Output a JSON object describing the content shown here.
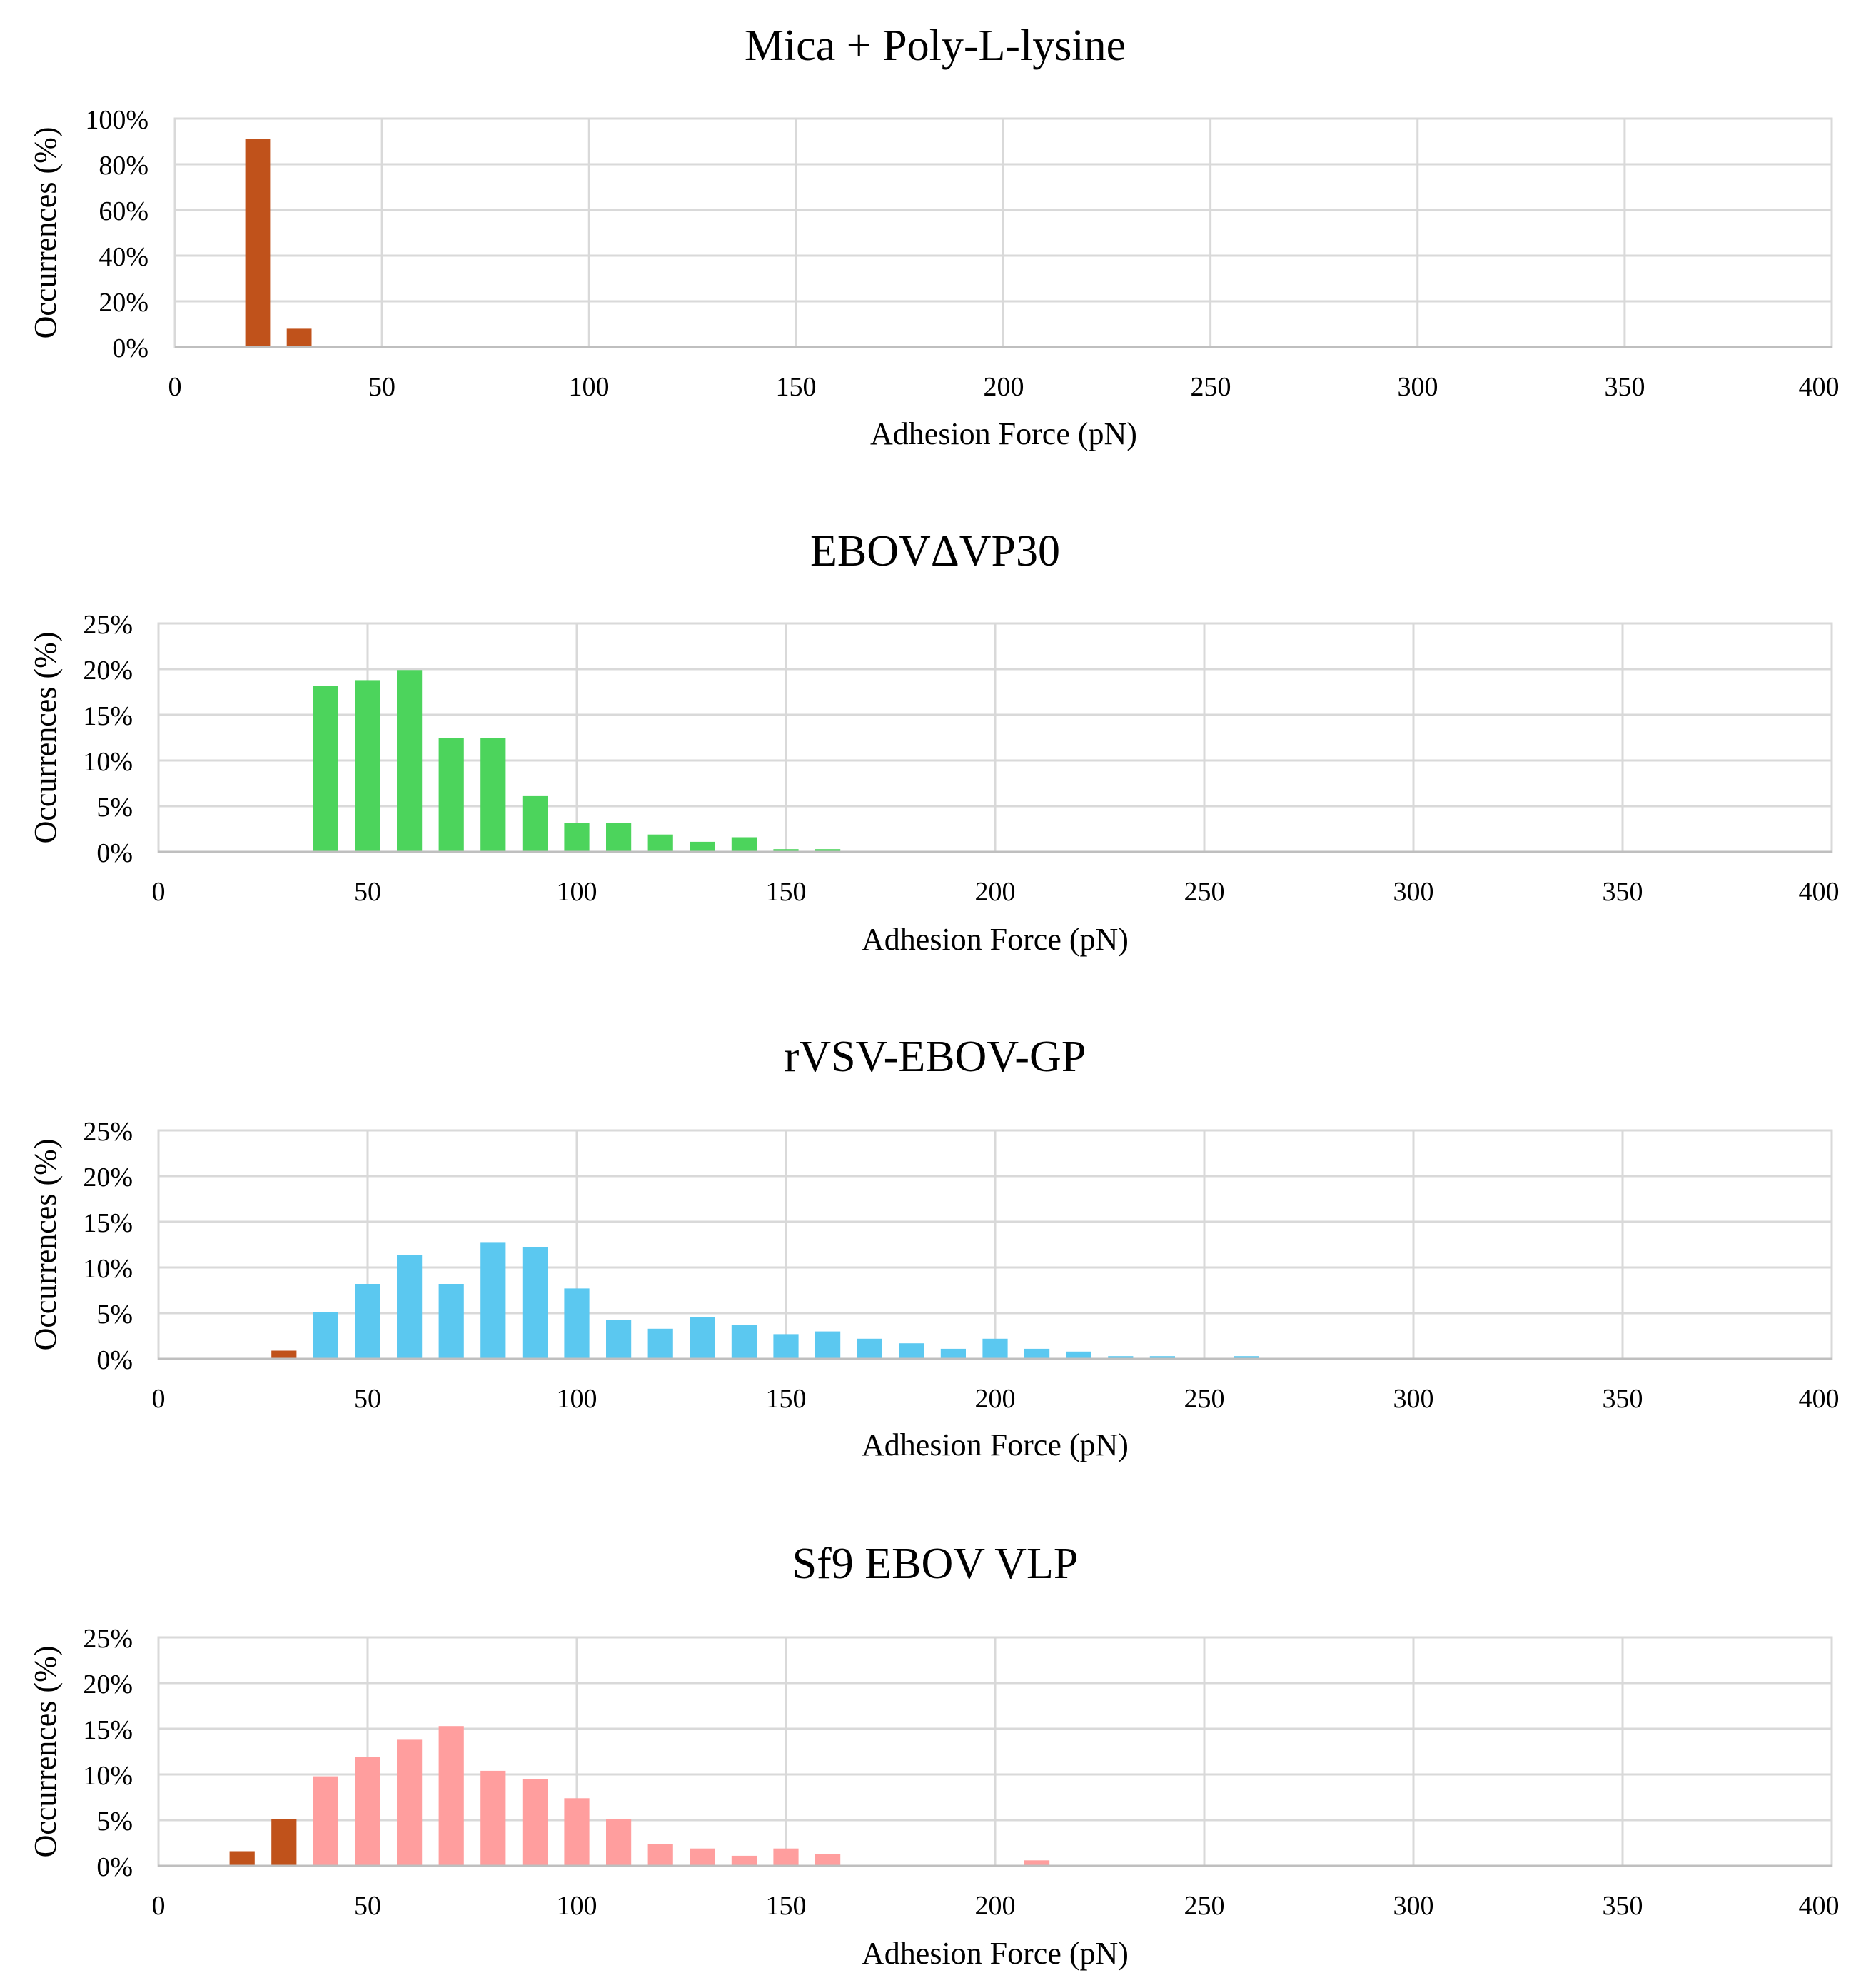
{
  "figure": {
    "panels": [
      {
        "title": "Mica + Poly-L-lysine",
        "xlabel": "Adhesion Force (pN)",
        "ylabel": "Occurrences (%)",
        "x_ticks": [
          "0",
          "50",
          "100",
          "150",
          "200",
          "250",
          "300",
          "350",
          "400"
        ],
        "y_ticks": [
          "0%",
          "20%",
          "40%",
          "60%",
          "80%",
          "100%"
        ]
      },
      {
        "title": "EBOVΔVP30",
        "xlabel": "Adhesion Force (pN)",
        "ylabel": "Occurrences (%)",
        "x_ticks": [
          "0",
          "50",
          "100",
          "150",
          "200",
          "250",
          "300",
          "350",
          "400"
        ],
        "y_ticks": [
          "0%",
          "5%",
          "10%",
          "15%",
          "20%",
          "25%"
        ]
      },
      {
        "title": "rVSV-EBOV-GP",
        "xlabel": "Adhesion Force (pN)",
        "ylabel": "Occurrences (%)",
        "x_ticks": [
          "0",
          "50",
          "100",
          "150",
          "200",
          "250",
          "300",
          "350",
          "400"
        ],
        "y_ticks": [
          "0%",
          "5%",
          "10%",
          "15%",
          "20%",
          "25%"
        ]
      },
      {
        "title": "Sf9 EBOV VLP",
        "xlabel": "Adhesion Force (pN)",
        "ylabel": "Occurrences (%)",
        "x_ticks": [
          "0",
          "50",
          "100",
          "150",
          "200",
          "250",
          "300",
          "350",
          "400"
        ],
        "y_ticks": [
          "0%",
          "5%",
          "10%",
          "15%",
          "20%",
          "25%"
        ]
      }
    ]
  },
  "chart_data": [
    {
      "type": "bar",
      "title": "Mica + Poly-L-lysine",
      "xlabel": "Adhesion Force (pN)",
      "ylabel": "Occurrences (%)",
      "xlim": [
        0,
        400
      ],
      "ylim": [
        0,
        100
      ],
      "grid": true,
      "bin_width": 10,
      "bars": [
        {
          "x": 20,
          "value": 91,
          "color": "#c0521b"
        },
        {
          "x": 30,
          "value": 8,
          "color": "#c0521b"
        }
      ]
    },
    {
      "type": "bar",
      "title": "EBOVΔVP30",
      "xlabel": "Adhesion Force (pN)",
      "ylabel": "Occurrences (%)",
      "xlim": [
        0,
        400
      ],
      "ylim": [
        0,
        25
      ],
      "grid": true,
      "bin_width": 10,
      "bars": [
        {
          "x": 40,
          "value": 18.2,
          "color": "#4cd45c"
        },
        {
          "x": 50,
          "value": 18.8,
          "color": "#4cd45c"
        },
        {
          "x": 60,
          "value": 19.9,
          "color": "#4cd45c"
        },
        {
          "x": 70,
          "value": 12.5,
          "color": "#4cd45c"
        },
        {
          "x": 80,
          "value": 12.5,
          "color": "#4cd45c"
        },
        {
          "x": 90,
          "value": 6.1,
          "color": "#4cd45c"
        },
        {
          "x": 100,
          "value": 3.2,
          "color": "#4cd45c"
        },
        {
          "x": 110,
          "value": 3.2,
          "color": "#4cd45c"
        },
        {
          "x": 120,
          "value": 1.9,
          "color": "#4cd45c"
        },
        {
          "x": 130,
          "value": 1.1,
          "color": "#4cd45c"
        },
        {
          "x": 140,
          "value": 1.6,
          "color": "#4cd45c"
        },
        {
          "x": 150,
          "value": 0.3,
          "color": "#4cd45c"
        },
        {
          "x": 160,
          "value": 0.3,
          "color": "#4cd45c"
        }
      ]
    },
    {
      "type": "bar",
      "title": "rVSV-EBOV-GP",
      "xlabel": "Adhesion Force (pN)",
      "ylabel": "Occurrences (%)",
      "xlim": [
        0,
        400
      ],
      "ylim": [
        0,
        25
      ],
      "grid": true,
      "bin_width": 10,
      "bars": [
        {
          "x": 30,
          "value": 0.9,
          "color": "#c0521b"
        },
        {
          "x": 40,
          "value": 5.1,
          "color": "#5bc8f0"
        },
        {
          "x": 50,
          "value": 8.2,
          "color": "#5bc8f0"
        },
        {
          "x": 60,
          "value": 11.4,
          "color": "#5bc8f0"
        },
        {
          "x": 70,
          "value": 8.2,
          "color": "#5bc8f0"
        },
        {
          "x": 80,
          "value": 12.7,
          "color": "#5bc8f0"
        },
        {
          "x": 90,
          "value": 12.2,
          "color": "#5bc8f0"
        },
        {
          "x": 100,
          "value": 7.7,
          "color": "#5bc8f0"
        },
        {
          "x": 110,
          "value": 4.3,
          "color": "#5bc8f0"
        },
        {
          "x": 120,
          "value": 3.3,
          "color": "#5bc8f0"
        },
        {
          "x": 130,
          "value": 4.6,
          "color": "#5bc8f0"
        },
        {
          "x": 140,
          "value": 3.7,
          "color": "#5bc8f0"
        },
        {
          "x": 150,
          "value": 2.7,
          "color": "#5bc8f0"
        },
        {
          "x": 160,
          "value": 3.0,
          "color": "#5bc8f0"
        },
        {
          "x": 170,
          "value": 2.2,
          "color": "#5bc8f0"
        },
        {
          "x": 180,
          "value": 1.7,
          "color": "#5bc8f0"
        },
        {
          "x": 190,
          "value": 1.1,
          "color": "#5bc8f0"
        },
        {
          "x": 200,
          "value": 2.2,
          "color": "#5bc8f0"
        },
        {
          "x": 210,
          "value": 1.1,
          "color": "#5bc8f0"
        },
        {
          "x": 220,
          "value": 0.8,
          "color": "#5bc8f0"
        },
        {
          "x": 230,
          "value": 0.3,
          "color": "#5bc8f0"
        },
        {
          "x": 240,
          "value": 0.3,
          "color": "#5bc8f0"
        },
        {
          "x": 260,
          "value": 0.3,
          "color": "#5bc8f0"
        }
      ]
    },
    {
      "type": "bar",
      "title": "Sf9 EBOV VLP",
      "xlabel": "Adhesion Force (pN)",
      "ylabel": "Occurrences (%)",
      "xlim": [
        0,
        400
      ],
      "ylim": [
        0,
        25
      ],
      "grid": true,
      "bin_width": 10,
      "bars": [
        {
          "x": 20,
          "value": 1.6,
          "color": "#c0521b"
        },
        {
          "x": 30,
          "value": 5.1,
          "color": "#c0521b"
        },
        {
          "x": 40,
          "value": 9.8,
          "color": "#ff9e9e"
        },
        {
          "x": 50,
          "value": 11.9,
          "color": "#ff9e9e"
        },
        {
          "x": 60,
          "value": 13.8,
          "color": "#ff9e9e"
        },
        {
          "x": 70,
          "value": 15.3,
          "color": "#ff9e9e"
        },
        {
          "x": 80,
          "value": 10.4,
          "color": "#ff9e9e"
        },
        {
          "x": 90,
          "value": 9.5,
          "color": "#ff9e9e"
        },
        {
          "x": 100,
          "value": 7.4,
          "color": "#ff9e9e"
        },
        {
          "x": 110,
          "value": 5.1,
          "color": "#ff9e9e"
        },
        {
          "x": 120,
          "value": 2.4,
          "color": "#ff9e9e"
        },
        {
          "x": 130,
          "value": 1.9,
          "color": "#ff9e9e"
        },
        {
          "x": 140,
          "value": 1.1,
          "color": "#ff9e9e"
        },
        {
          "x": 150,
          "value": 1.9,
          "color": "#ff9e9e"
        },
        {
          "x": 160,
          "value": 1.3,
          "color": "#ff9e9e"
        },
        {
          "x": 210,
          "value": 0.6,
          "color": "#ff9e9e"
        }
      ]
    }
  ]
}
